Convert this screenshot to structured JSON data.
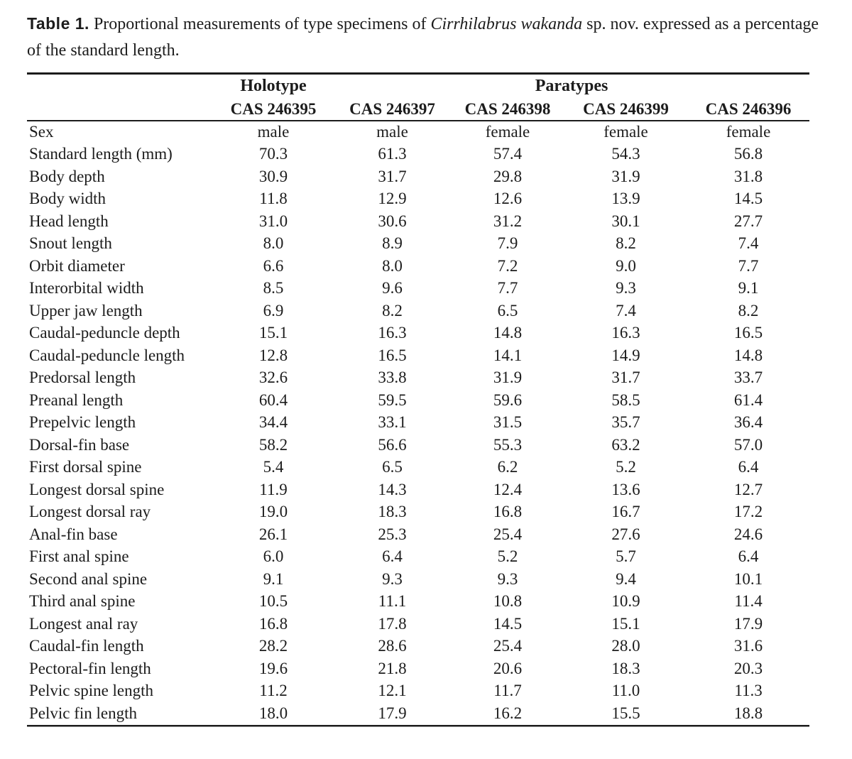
{
  "caption": {
    "label": "Table 1.",
    "before_species": "Proportional measurements of type specimens of",
    "species_name": "Cirrhilabrus wakanda",
    "after_species": "sp. nov. expressed as a percentage of the standard length."
  },
  "table": {
    "group_headers": {
      "holotype": "Holotype",
      "paratypes": "Paratypes"
    },
    "column_headers": [
      "CAS 246395",
      "CAS 246397",
      "CAS 246398",
      "CAS 246399",
      "CAS 246396"
    ],
    "rows": [
      {
        "label": "Sex",
        "values": [
          "male",
          "male",
          "female",
          "female",
          "female"
        ]
      },
      {
        "label": "Standard length (mm)",
        "values": [
          "70.3",
          "61.3",
          "57.4",
          "54.3",
          "56.8"
        ]
      },
      {
        "label": "Body depth",
        "values": [
          "30.9",
          "31.7",
          "29.8",
          "31.9",
          "31.8"
        ]
      },
      {
        "label": "Body width",
        "values": [
          "11.8",
          "12.9",
          "12.6",
          "13.9",
          "14.5"
        ]
      },
      {
        "label": "Head length",
        "values": [
          "31.0",
          "30.6",
          "31.2",
          "30.1",
          "27.7"
        ]
      },
      {
        "label": "Snout length",
        "values": [
          "8.0",
          "8.9",
          "7.9",
          "8.2",
          "7.4"
        ]
      },
      {
        "label": "Orbit diameter",
        "values": [
          "6.6",
          "8.0",
          "7.2",
          "9.0",
          "7.7"
        ]
      },
      {
        "label": "Interorbital width",
        "values": [
          "8.5",
          "9.6",
          "7.7",
          "9.3",
          "9.1"
        ]
      },
      {
        "label": "Upper jaw length",
        "values": [
          "6.9",
          "8.2",
          "6.5",
          "7.4",
          "8.2"
        ]
      },
      {
        "label": "Caudal-peduncle depth",
        "values": [
          "15.1",
          "16.3",
          "14.8",
          "16.3",
          "16.5"
        ]
      },
      {
        "label": "Caudal-peduncle length",
        "values": [
          "12.8",
          "16.5",
          "14.1",
          "14.9",
          "14.8"
        ]
      },
      {
        "label": "Predorsal length",
        "values": [
          "32.6",
          "33.8",
          "31.9",
          "31.7",
          "33.7"
        ]
      },
      {
        "label": "Preanal length",
        "values": [
          "60.4",
          "59.5",
          "59.6",
          "58.5",
          "61.4"
        ]
      },
      {
        "label": "Prepelvic length",
        "values": [
          "34.4",
          "33.1",
          "31.5",
          "35.7",
          "36.4"
        ]
      },
      {
        "label": "Dorsal-fin base",
        "values": [
          "58.2",
          "56.6",
          "55.3",
          "63.2",
          "57.0"
        ]
      },
      {
        "label": "First dorsal spine",
        "values": [
          "5.4",
          "6.5",
          "6.2",
          "5.2",
          "6.4"
        ]
      },
      {
        "label": "Longest dorsal spine",
        "values": [
          "11.9",
          "14.3",
          "12.4",
          "13.6",
          "12.7"
        ]
      },
      {
        "label": "Longest dorsal ray",
        "values": [
          "19.0",
          "18.3",
          "16.8",
          "16.7",
          "17.2"
        ]
      },
      {
        "label": "Anal-fin base",
        "values": [
          "26.1",
          "25.3",
          "25.4",
          "27.6",
          "24.6"
        ]
      },
      {
        "label": "First anal spine",
        "values": [
          "6.0",
          "6.4",
          "5.2",
          "5.7",
          "6.4"
        ]
      },
      {
        "label": "Second anal spine",
        "values": [
          "9.1",
          "9.3",
          "9.3",
          "9.4",
          "10.1"
        ]
      },
      {
        "label": "Third anal spine",
        "values": [
          "10.5",
          "11.1",
          "10.8",
          "10.9",
          "11.4"
        ]
      },
      {
        "label": "Longest anal ray",
        "values": [
          "16.8",
          "17.8",
          "14.5",
          "15.1",
          "17.9"
        ]
      },
      {
        "label": "Caudal-fin length",
        "values": [
          "28.2",
          "28.6",
          "25.4",
          "28.0",
          "31.6"
        ]
      },
      {
        "label": "Pectoral-fin length",
        "values": [
          "19.6",
          "21.8",
          "20.6",
          "18.3",
          "20.3"
        ]
      },
      {
        "label": "Pelvic spine length",
        "values": [
          "11.2",
          "12.1",
          "11.7",
          "11.0",
          "11.3"
        ]
      },
      {
        "label": "Pelvic fin length",
        "values": [
          "18.0",
          "17.9",
          "16.2",
          "15.5",
          "18.8"
        ]
      }
    ]
  },
  "colors": {
    "text": "#1c1c1c",
    "background": "#ffffff",
    "rule": "#1c1c1c"
  }
}
